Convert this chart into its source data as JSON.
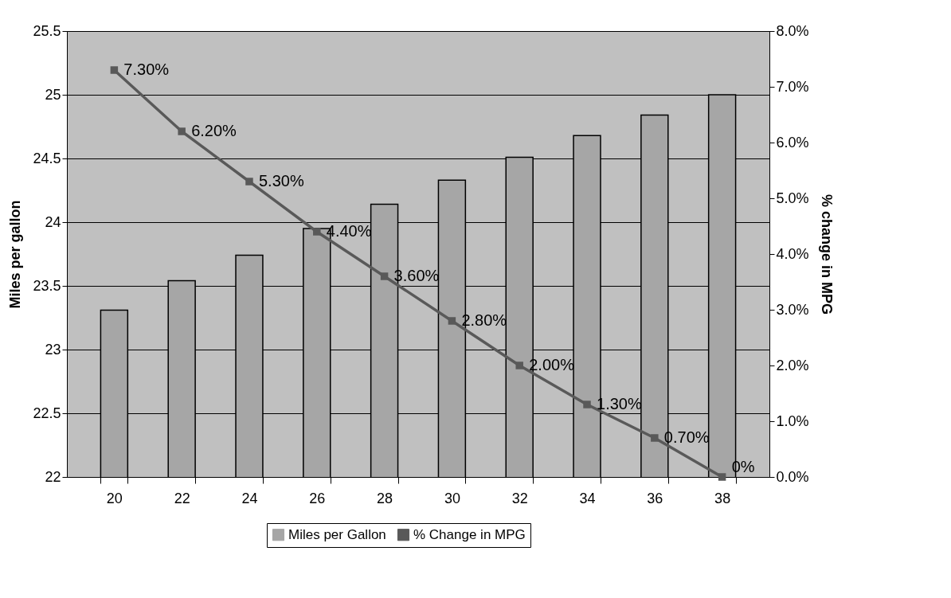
{
  "chart_data": {
    "type": "bar",
    "categories": [
      "20",
      "22",
      "24",
      "26",
      "28",
      "30",
      "32",
      "34",
      "36",
      "38"
    ],
    "ylabel": "Miles per gallon",
    "y2label": "% change in MPG",
    "series": [
      {
        "name": "Miles per Gallon",
        "color": "#a6a6a6",
        "values": [
          23.31,
          23.54,
          23.74,
          23.95,
          24.14,
          24.33,
          24.51,
          24.68,
          24.84,
          25.0
        ]
      },
      {
        "name": "% Change in MPG",
        "type": "line",
        "axis": "y2",
        "color": "#595959",
        "values": [
          7.3,
          6.2,
          5.3,
          4.4,
          3.6,
          2.8,
          2.0,
          1.3,
          0.7,
          0
        ],
        "value_labels": [
          "7.30%",
          "6.20%",
          "5.30%",
          "4.40%",
          "3.60%",
          "2.80%",
          "2.00%",
          "1.30%",
          "0.70%",
          "0%"
        ]
      }
    ],
    "ylim": [
      22,
      25.5
    ],
    "yticks": [
      22,
      22.5,
      23,
      23.5,
      24,
      24.5,
      25,
      25.5
    ],
    "y2lim": [
      0,
      8
    ],
    "y2ticks": [
      {
        "value": 0,
        "label": "0.0%"
      },
      {
        "value": 1,
        "label": "1.0%"
      },
      {
        "value": 2,
        "label": "2.0%"
      },
      {
        "value": 3,
        "label": "3.0%"
      },
      {
        "value": 4,
        "label": "4.0%"
      },
      {
        "value": 5,
        "label": "5.0%"
      },
      {
        "value": 6,
        "label": "6.0%"
      },
      {
        "value": 7,
        "label": "7.0%"
      },
      {
        "value": 8,
        "label": "8.0%"
      }
    ],
    "marker": "square",
    "grid": "y",
    "legend": "bottom"
  }
}
